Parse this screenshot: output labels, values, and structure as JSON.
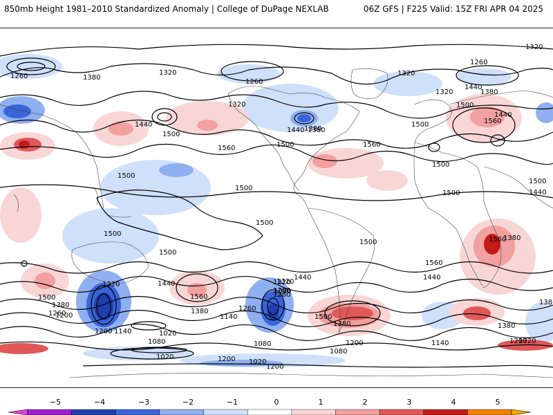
{
  "header": {
    "title": "850mb Height 1981–2010 Standardized Anomaly | College of DuPage NEXLAB",
    "run_info": "06Z GFS | F225 Valid: 15Z FRI APR 04 2025"
  },
  "colorbar": {
    "ticks": [
      "−5",
      "−4",
      "−3",
      "−2",
      "−1",
      "0",
      "1",
      "2",
      "3",
      "4",
      "5"
    ],
    "colors": [
      "#e040e0",
      "#9a1fd0",
      "#1f3fae",
      "#3a64d8",
      "#8fb0f0",
      "#cfe0fb",
      "#ffffff",
      "#f9d6d6",
      "#f2a0a0",
      "#e05858",
      "#c31a1a",
      "#f08000",
      "#f0b000"
    ]
  },
  "contour_labels": [
    "1320",
    "1260",
    "1380",
    "1320",
    "1260",
    "1320",
    "1260",
    "1320",
    "1440",
    "1380",
    "1500",
    "1320",
    "1440",
    "1560",
    "1500",
    "1560",
    "1500",
    "1380",
    "1440",
    "1500",
    "1560",
    "1440",
    "1380",
    "1500",
    "1500",
    "1500",
    "1500",
    "1500",
    "1500",
    "1500",
    "1500",
    "1560",
    "1500",
    "1440",
    "1440",
    "1380",
    "1260",
    "1200",
    "1500",
    "1320",
    "1200",
    "1080",
    "1500",
    "1380",
    "1440",
    "1320",
    "1260",
    "1140",
    "1320",
    "1200",
    "1140",
    "1260",
    "1380",
    "1560",
    "1440",
    "1020",
    "1080",
    "1020",
    "1080",
    "1200",
    "1020",
    "1080",
    "1140",
    "1200",
    "1200",
    "1200",
    "1380",
    "1320",
    "1380",
    "1380",
    "1560",
    "1500"
  ]
}
